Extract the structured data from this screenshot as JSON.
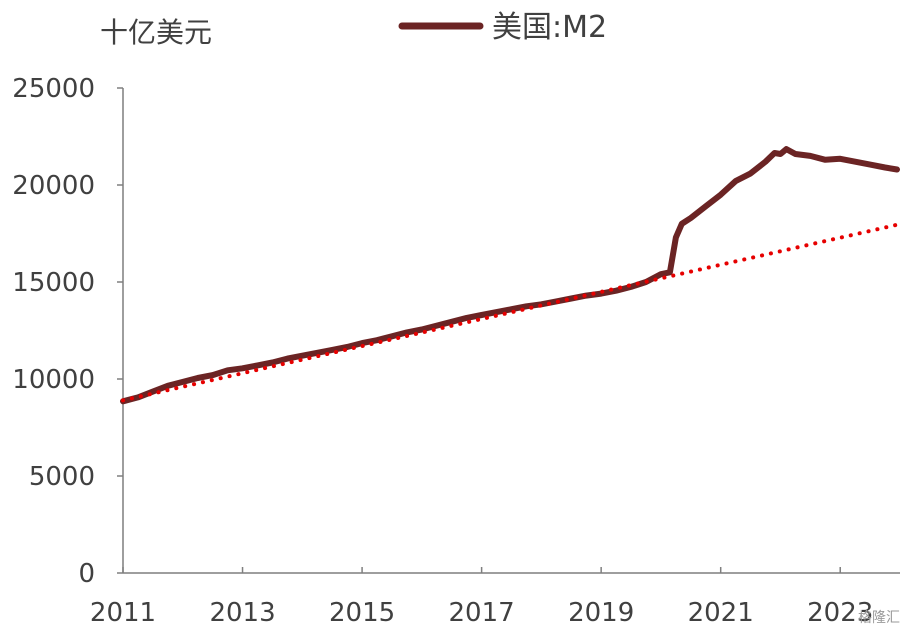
{
  "chart_data": {
    "type": "line",
    "title": "",
    "ylabel": "十亿美元",
    "xlabel": "",
    "ylim": [
      0,
      25000
    ],
    "xlim": [
      2011,
      2024.0
    ],
    "yticks": [
      0,
      5000,
      10000,
      15000,
      20000,
      25000
    ],
    "xticks": [
      2011,
      2013,
      2015,
      2017,
      2019,
      2021,
      2023
    ],
    "xtick_labels": [
      "2011",
      "2013",
      "2015",
      "2017",
      "2019",
      "2021",
      "2023"
    ],
    "ytick_labels": [
      "0",
      "5000",
      "10000",
      "15000",
      "20000",
      "25000"
    ],
    "grid": false,
    "legend": {
      "position": "top-center",
      "entries": [
        "美国:M2"
      ]
    },
    "series": [
      {
        "name": "美国:M2",
        "color": "#6b2424",
        "style": "solid",
        "x": [
          2011.0,
          2011.25,
          2011.5,
          2011.75,
          2012.0,
          2012.25,
          2012.5,
          2012.75,
          2013.0,
          2013.25,
          2013.5,
          2013.75,
          2014.0,
          2014.25,
          2014.5,
          2014.75,
          2015.0,
          2015.25,
          2015.5,
          2015.75,
          2016.0,
          2016.25,
          2016.5,
          2016.75,
          2017.0,
          2017.25,
          2017.5,
          2017.75,
          2018.0,
          2018.25,
          2018.5,
          2018.75,
          2019.0,
          2019.25,
          2019.5,
          2019.75,
          2020.0,
          2020.15,
          2020.25,
          2020.35,
          2020.5,
          2020.75,
          2021.0,
          2021.25,
          2021.5,
          2021.75,
          2021.9,
          2022.0,
          2022.1,
          2022.25,
          2022.5,
          2022.75,
          2023.0,
          2023.25,
          2023.5,
          2023.75,
          2023.95
        ],
        "y": [
          8850,
          9050,
          9350,
          9650,
          9850,
          10050,
          10200,
          10450,
          10550,
          10700,
          10850,
          11050,
          11200,
          11350,
          11500,
          11650,
          11850,
          12000,
          12200,
          12400,
          12550,
          12750,
          12950,
          13150,
          13300,
          13450,
          13600,
          13750,
          13850,
          14000,
          14150,
          14300,
          14400,
          14550,
          14750,
          15000,
          15400,
          15500,
          17300,
          18000,
          18300,
          18900,
          19500,
          20200,
          20600,
          21200,
          21650,
          21600,
          21850,
          21600,
          21500,
          21300,
          21350,
          21200,
          21050,
          20900,
          20800
        ]
      },
      {
        "name": "",
        "color": "#e60000",
        "style": "dotted",
        "x": [
          2011.0,
          2023.95
        ],
        "y": [
          8900,
          17950
        ]
      }
    ]
  },
  "watermark": "格隆汇"
}
